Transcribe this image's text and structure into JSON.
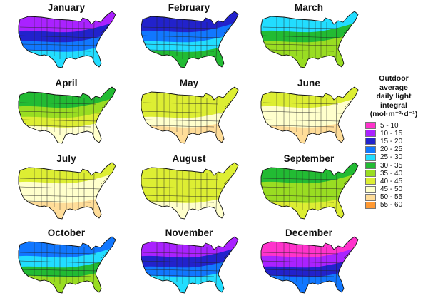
{
  "legend": {
    "title": "Outdoor\naverage\ndaily light\nintegral\n(mol·m⁻²·d⁻¹)",
    "items": [
      {
        "label": "5 - 10",
        "color": "#ff33cc"
      },
      {
        "label": "10 - 15",
        "color": "#aa22ff"
      },
      {
        "label": "15 - 20",
        "color": "#2222cc"
      },
      {
        "label": "20 - 25",
        "color": "#1177ff"
      },
      {
        "label": "25 - 30",
        "color": "#22ddff"
      },
      {
        "label": "30 - 35",
        "color": "#22bb33"
      },
      {
        "label": "35 - 40",
        "color": "#99dd22"
      },
      {
        "label": "40 - 45",
        "color": "#ddee33"
      },
      {
        "label": "45 - 50",
        "color": "#ffffcc"
      },
      {
        "label": "50 - 55",
        "color": "#ffdd99"
      },
      {
        "label": "55 - 60",
        "color": "#ff9933"
      }
    ]
  },
  "months": [
    {
      "name": "January",
      "bands": [
        1,
        2,
        3,
        4
      ]
    },
    {
      "name": "February",
      "bands": [
        2,
        3,
        4,
        5
      ]
    },
    {
      "name": "March",
      "bands": [
        4,
        5,
        6,
        6
      ]
    },
    {
      "name": "April",
      "bands": [
        5,
        6,
        7,
        8
      ]
    },
    {
      "name": "May",
      "bands": [
        7,
        7,
        8,
        9
      ]
    },
    {
      "name": "June",
      "bands": [
        7,
        8,
        8,
        9
      ]
    },
    {
      "name": "July",
      "bands": [
        7,
        8,
        8,
        9
      ]
    },
    {
      "name": "August",
      "bands": [
        7,
        7,
        7,
        8
      ]
    },
    {
      "name": "September",
      "bands": [
        5,
        6,
        6,
        7
      ]
    },
    {
      "name": "October",
      "bands": [
        3,
        4,
        5,
        6
      ]
    },
    {
      "name": "November",
      "bands": [
        1,
        2,
        3,
        4
      ]
    },
    {
      "name": "December",
      "bands": [
        0,
        1,
        2,
        3
      ]
    }
  ]
}
